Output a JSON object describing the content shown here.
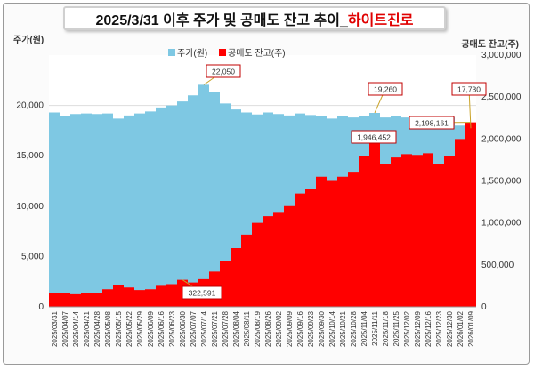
{
  "title": {
    "prefix": "2025/3/31 이후 주가 및 공매도 잔고 추이_",
    "highlight": "하이트진로"
  },
  "chart_data": {
    "type": "area",
    "left_axis_label": "주가(원)",
    "right_axis_label": "공매도 잔고(주)",
    "left_ylim": [
      0,
      25000
    ],
    "left_ticks": [
      "0",
      "5,000",
      "10,000",
      "15,000",
      "20,000"
    ],
    "right_ylim": [
      0,
      3000000
    ],
    "right_ticks": [
      "0",
      "500,000",
      "1,000,000",
      "1,500,000",
      "2,000,000",
      "2,500,000",
      "3,000,000"
    ],
    "legend": [
      "주가(원)",
      "공매도 잔고(주)"
    ],
    "x_labels": [
      "2025/03/31",
      "2025/04/07",
      "2025/04/14",
      "2025/04/21",
      "2025/04/28",
      "2025/05/08",
      "2025/05/15",
      "2025/05/22",
      "2025/05/29",
      "2025/06/09",
      "2025/06/16",
      "2025/06/23",
      "2025/06/30",
      "2025/07/07",
      "2025/07/14",
      "2025/07/21",
      "2025/07/28",
      "2025/08/04",
      "2025/08/11",
      "2025/08/19",
      "2025/08/26",
      "2025/09/02",
      "2025/09/09",
      "2025/09/16",
      "2025/09/23",
      "2025/09/30",
      "2025/10/14",
      "2025/10/21",
      "2025/10/28",
      "2025/11/04",
      "2025/11/11",
      "2025/11/18",
      "2025/11/25",
      "2025/12/02",
      "2025/12/09",
      "2025/12/16",
      "2025/12/23",
      "2025/12/30",
      "2026/01/02",
      "2026/01/09"
    ],
    "series": [
      {
        "name": "주가(원)",
        "color": "#7ec8e3",
        "points": [
          [
            0,
            19300
          ],
          [
            1,
            18900
          ],
          [
            2,
            19150
          ],
          [
            3,
            19200
          ],
          [
            4,
            19150
          ],
          [
            5,
            19200
          ],
          [
            6,
            18700
          ],
          [
            7,
            19000
          ],
          [
            8,
            19200
          ],
          [
            9,
            19400
          ],
          [
            10,
            19800
          ],
          [
            11,
            20000
          ],
          [
            12,
            20400
          ],
          [
            13,
            21000
          ],
          [
            14,
            22050
          ],
          [
            15,
            21300
          ],
          [
            16,
            20200
          ],
          [
            17,
            19600
          ],
          [
            18,
            19300
          ],
          [
            19,
            19100
          ],
          [
            20,
            19300
          ],
          [
            21,
            19150
          ],
          [
            22,
            19000
          ],
          [
            23,
            19200
          ],
          [
            24,
            19050
          ],
          [
            25,
            18900
          ],
          [
            26,
            18700
          ],
          [
            27,
            18950
          ],
          [
            28,
            18800
          ],
          [
            29,
            18900
          ],
          [
            30,
            19260
          ],
          [
            31,
            18800
          ],
          [
            32,
            18900
          ],
          [
            33,
            18800
          ],
          [
            34,
            18700
          ],
          [
            35,
            18800
          ],
          [
            36,
            18600
          ],
          [
            37,
            18800
          ],
          [
            38,
            18000
          ],
          [
            39,
            17730
          ]
        ]
      },
      {
        "name": "공매도 잔고(주)",
        "color": "#ff0000",
        "points": [
          [
            0,
            160000
          ],
          [
            1,
            165000
          ],
          [
            2,
            150000
          ],
          [
            3,
            160000
          ],
          [
            4,
            170000
          ],
          [
            5,
            210000
          ],
          [
            6,
            260000
          ],
          [
            7,
            230000
          ],
          [
            8,
            200000
          ],
          [
            9,
            210000
          ],
          [
            10,
            250000
          ],
          [
            11,
            270000
          ],
          [
            12,
            322591
          ],
          [
            13,
            290000
          ],
          [
            14,
            330000
          ],
          [
            15,
            420000
          ],
          [
            16,
            540000
          ],
          [
            17,
            700000
          ],
          [
            18,
            860000
          ],
          [
            19,
            1000000
          ],
          [
            20,
            1080000
          ],
          [
            21,
            1130000
          ],
          [
            22,
            1200000
          ],
          [
            23,
            1350000
          ],
          [
            24,
            1400000
          ],
          [
            25,
            1550000
          ],
          [
            26,
            1500000
          ],
          [
            27,
            1550000
          ],
          [
            28,
            1600000
          ],
          [
            29,
            1800000
          ],
          [
            30,
            1946452
          ],
          [
            31,
            1700000
          ],
          [
            32,
            1780000
          ],
          [
            33,
            1820000
          ],
          [
            34,
            1810000
          ],
          [
            35,
            1830000
          ],
          [
            36,
            1700000
          ],
          [
            37,
            1800000
          ],
          [
            38,
            2000000
          ],
          [
            39,
            2198161
          ]
        ]
      }
    ],
    "annotations": [
      {
        "text": "22,050",
        "x": 14,
        "series": "주가(원)"
      },
      {
        "text": "19,260",
        "x": 30,
        "series": "주가(원)"
      },
      {
        "text": "17,730",
        "x": 39,
        "series": "주가(원)"
      },
      {
        "text": "1,946,452",
        "x": 30,
        "series": "공매도 잔고(주)"
      },
      {
        "text": "2,198,161",
        "x": 39,
        "series": "공매도 잔고(주)"
      },
      {
        "text": "322,591",
        "x": 12,
        "series": "공매도 잔고(주)"
      }
    ]
  }
}
